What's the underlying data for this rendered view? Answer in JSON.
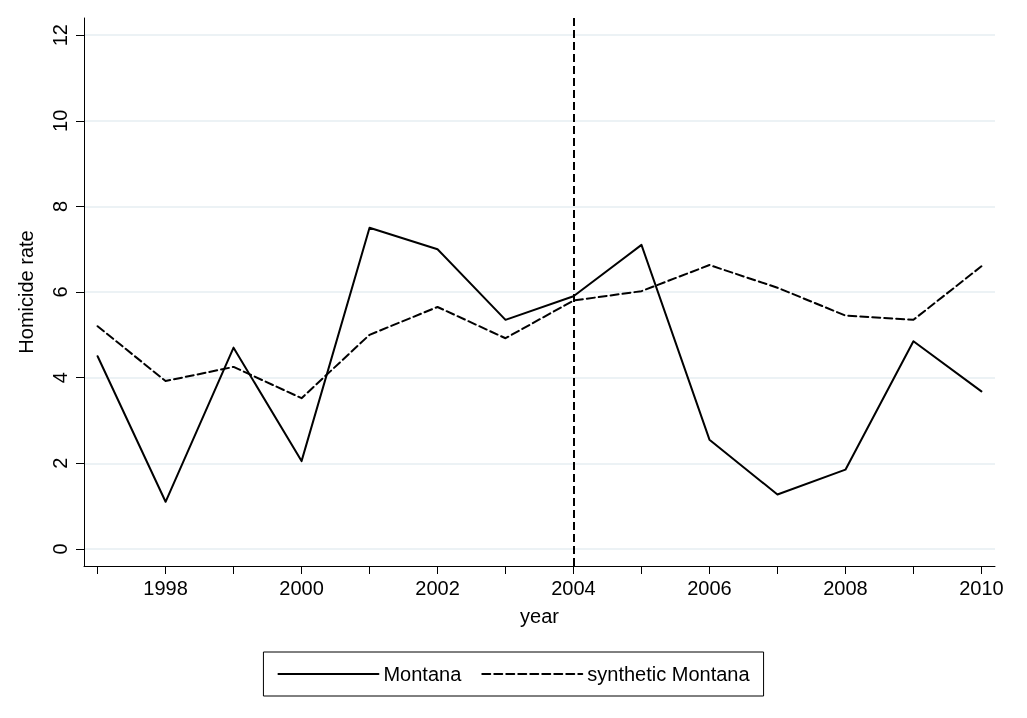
{
  "chart_data": {
    "type": "line",
    "xlabel": "year",
    "ylabel": "Homicide rate",
    "x": [
      1997,
      1998,
      1999,
      2000,
      2001,
      2002,
      2003,
      2004,
      2005,
      2006,
      2007,
      2008,
      2009,
      2010
    ],
    "series": [
      {
        "name": "Montana",
        "color": "#000000",
        "line_style": "solid",
        "values": [
          4.5,
          1.1,
          4.7,
          2.05,
          7.5,
          7.0,
          5.35,
          5.9,
          7.1,
          2.55,
          1.27,
          1.85,
          4.85,
          3.68
        ]
      },
      {
        "name": "synthetic Montana",
        "color": "#000000",
        "line_style": "dashed",
        "values": [
          5.2,
          3.92,
          4.25,
          3.52,
          5.0,
          5.65,
          4.92,
          5.8,
          6.02,
          6.63,
          6.1,
          5.45,
          5.35,
          6.6
        ]
      }
    ],
    "xlim": [
      1996.8,
      2010.2
    ],
    "xticks": [
      {
        "value": 1997,
        "label": null
      },
      1998,
      {
        "value": 1999,
        "label": null
      },
      2000,
      {
        "value": 2001,
        "label": null
      },
      2002,
      {
        "value": 2003,
        "label": null
      },
      2004,
      {
        "value": 2005,
        "label": null
      },
      2006,
      {
        "value": 2007,
        "label": null
      },
      2008,
      {
        "value": 2009,
        "label": null
      },
      2010
    ],
    "ylim": [
      -0.4,
      12.4
    ],
    "yticks": [
      0,
      2,
      4,
      6,
      8,
      10,
      12
    ],
    "grid": "y",
    "legend": "bottom",
    "marker": "none",
    "ref_lines": [
      {
        "axis": "x",
        "value": 2004,
        "color": "#000000",
        "line_style": "dashed"
      }
    ]
  }
}
